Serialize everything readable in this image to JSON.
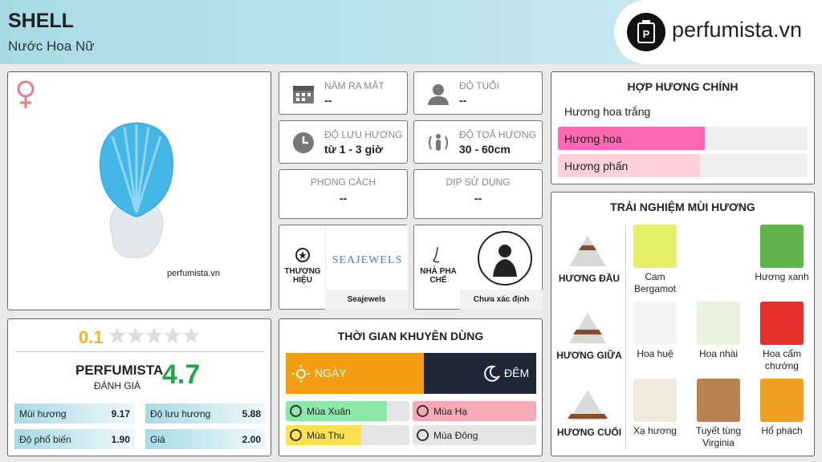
{
  "header": {
    "title": "SHELL",
    "subtitle": "Nước Hoa Nữ",
    "logo": "perfumista.vn"
  },
  "image": {
    "watermark": "perfumista.vn"
  },
  "info": [
    {
      "label": "NĂM RA MẮT",
      "value": "--"
    },
    {
      "label": "ĐỘ TUỔI",
      "value": "--"
    },
    {
      "label": "ĐỘ LƯU HƯƠNG",
      "value": "từ 1 - 3 giờ"
    },
    {
      "label": "ĐỘ TOẢ HƯƠNG",
      "value": "30 - 60cm"
    },
    {
      "label": "PHONG CÁCH",
      "value": "--"
    },
    {
      "label": "DỊP SỬ DỤNG",
      "value": "--"
    }
  ],
  "brand": {
    "label": "THƯƠNG HIỆU",
    "logo": "SEAJEWELS",
    "name": "Seajewels"
  },
  "perfumer": {
    "label": "NHÀ PHA CHẾ",
    "name": "Chưa xác định"
  },
  "rating": {
    "user_score": "0.1",
    "brand": "PERFUMISTA",
    "label": "ĐÁNH GIÁ",
    "score": "4.7",
    "metrics": [
      {
        "name": "Mùi hương",
        "value": "9.17"
      },
      {
        "name": "Độ lưu hương",
        "value": "5.88"
      },
      {
        "name": "Độ phổ biến",
        "value": "1.90"
      },
      {
        "name": "Giá",
        "value": "2.00"
      }
    ]
  },
  "time": {
    "title": "THỜI GIAN KHUYÊN DÙNG",
    "day": "NGÀY",
    "night": "ĐÊM",
    "day_share": 55,
    "seasons": [
      {
        "name": "Mùa Xuân",
        "level": 82,
        "color": "#8ee6a8"
      },
      {
        "name": "Mùa Hạ",
        "level": 100,
        "color": "#f6a9b6"
      },
      {
        "name": "Mùa Thu",
        "level": 61,
        "color": "#fde24f"
      },
      {
        "name": "Mùa Đông",
        "level": 0,
        "color": "#bfe3f7"
      }
    ]
  },
  "accords": {
    "title": "HỢP HƯƠNG CHÍNH",
    "items": [
      {
        "name": "Hương hoa trắng",
        "strength": 100,
        "color": "#ffffff"
      },
      {
        "name": "Hương hoa",
        "strength": 59,
        "color": "#ff69b4"
      },
      {
        "name": "Hương phấn",
        "strength": 57,
        "color": "#ffd1dc"
      }
    ]
  },
  "notes": {
    "title": "TRẢI NGHIỆM MÙI HƯƠNG",
    "tiers": [
      {
        "name": "HƯƠNG ĐẦU",
        "notes": [
          "Cam Bergamot",
          "Hương xanh"
        ]
      },
      {
        "name": "HƯƠNG GIỮA",
        "notes": [
          "Hoa huệ",
          "Hoa nhài",
          "Hoa cẩm chướng"
        ]
      },
      {
        "name": "HƯƠNG CUỐI",
        "notes": [
          "Xạ hương",
          "Tuyết tùng Virginia",
          "Hổ phách"
        ]
      }
    ]
  }
}
